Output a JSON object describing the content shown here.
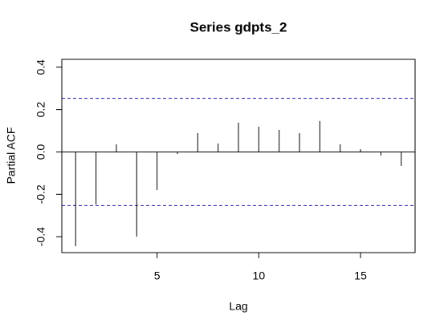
{
  "chart_data": {
    "type": "pacf",
    "title": "Series  gdpts_2",
    "xlabel": "Lag",
    "ylabel": "Partial ACF",
    "x": [
      1,
      2,
      3,
      4,
      5,
      6,
      7,
      8,
      9,
      10,
      11,
      12,
      13,
      14,
      15,
      16,
      17
    ],
    "values": [
      -0.445,
      -0.248,
      0.036,
      -0.4,
      -0.18,
      -0.01,
      0.089,
      0.04,
      0.138,
      0.119,
      0.104,
      0.089,
      0.146,
      0.036,
      0.013,
      -0.017,
      -0.066
    ],
    "color": "#000000",
    "ci": [
      0.253,
      -0.253
    ],
    "ci_color": "#1a1aa6",
    "xlim": [
      0.32,
      17.68
    ],
    "xticks": [
      5,
      10,
      15
    ],
    "ylim": [
      -0.475,
      0.437
    ],
    "yticks": [
      -0.4,
      -0.2,
      {
        "value": 0,
        "label": "0.0"
      },
      0.2,
      0.4
    ]
  }
}
